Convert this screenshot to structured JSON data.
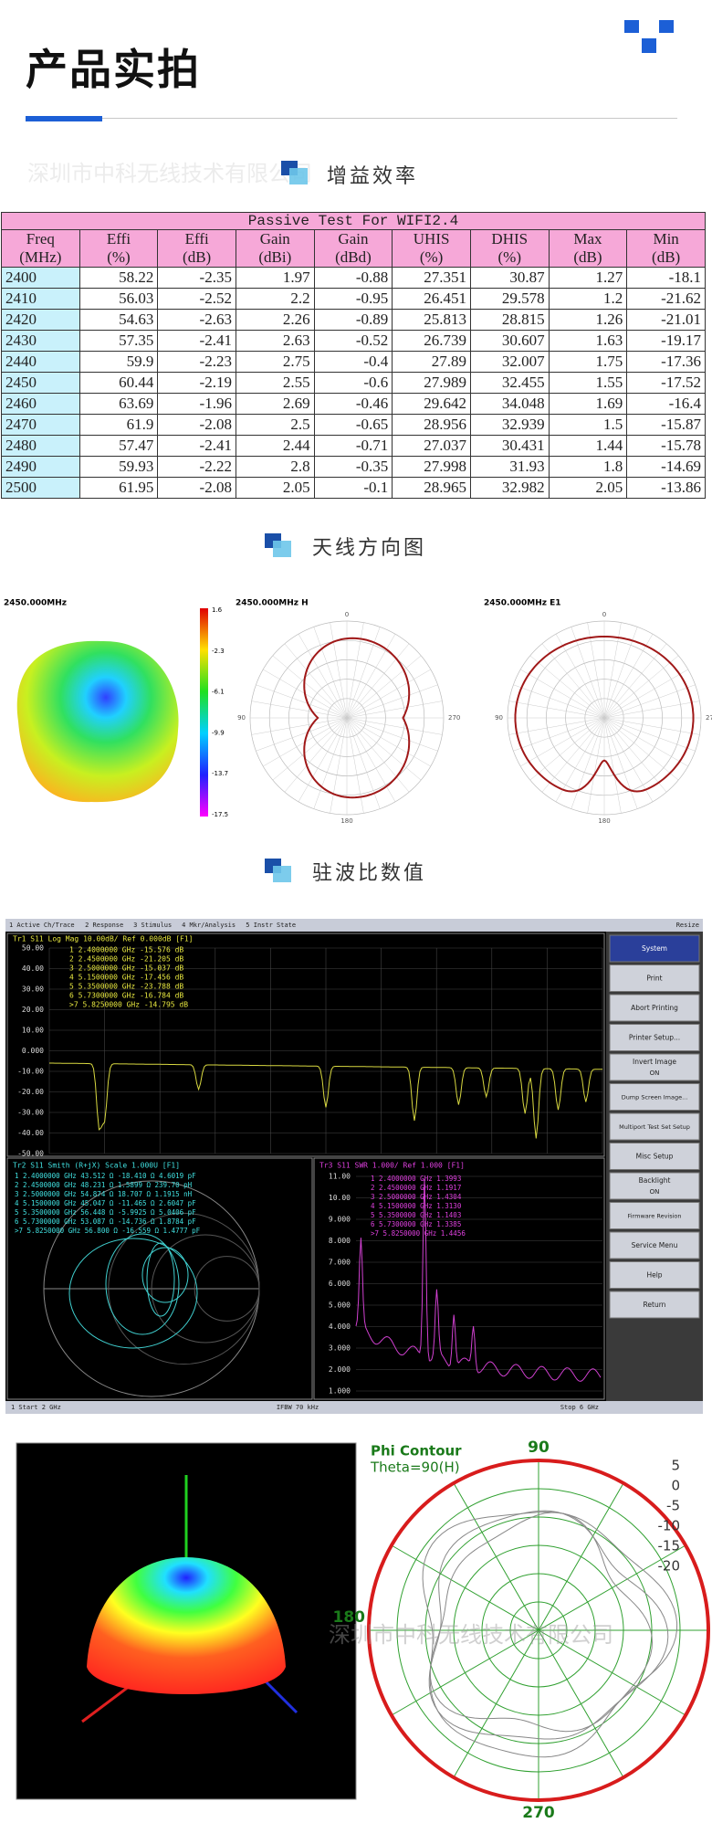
{
  "header": {
    "title": "产品实拍"
  },
  "watermark": "深圳市中科无线技术有限公司",
  "sections": [
    "增益效率",
    "天线方向图",
    "驻波比数值"
  ],
  "table": {
    "title": "Passive Test For WIFI2.4",
    "columns": [
      {
        "name": "Freq",
        "unit": "(MHz)"
      },
      {
        "name": "Effi",
        "unit": "(%)"
      },
      {
        "name": "Effi",
        "unit": "(dB)"
      },
      {
        "name": "Gain",
        "unit": "(dBi)"
      },
      {
        "name": "Gain",
        "unit": "(dBd)"
      },
      {
        "name": "UHIS",
        "unit": "(%)"
      },
      {
        "name": "DHIS",
        "unit": "(%)"
      },
      {
        "name": "Max",
        "unit": "(dB)"
      },
      {
        "name": "Min",
        "unit": "(dB)"
      }
    ],
    "rows": [
      [
        "2400",
        "58.22",
        "-2.35",
        "1.97",
        "-0.88",
        "27.351",
        "30.87",
        "1.27",
        "-18.1"
      ],
      [
        "2410",
        "56.03",
        "-2.52",
        "2.2",
        "-0.95",
        "26.451",
        "29.578",
        "1.2",
        "-21.62"
      ],
      [
        "2420",
        "54.63",
        "-2.63",
        "2.26",
        "-0.89",
        "25.813",
        "28.815",
        "1.26",
        "-21.01"
      ],
      [
        "2430",
        "57.35",
        "-2.41",
        "2.63",
        "-0.52",
        "26.739",
        "30.607",
        "1.63",
        "-19.17"
      ],
      [
        "2440",
        "59.9",
        "-2.23",
        "2.75",
        "-0.4",
        "27.89",
        "32.007",
        "1.75",
        "-17.36"
      ],
      [
        "2450",
        "60.44",
        "-2.19",
        "2.55",
        "-0.6",
        "27.989",
        "32.455",
        "1.55",
        "-17.52"
      ],
      [
        "2460",
        "63.69",
        "-1.96",
        "2.69",
        "-0.46",
        "29.642",
        "34.048",
        "1.69",
        "-16.4"
      ],
      [
        "2470",
        "61.9",
        "-2.08",
        "2.5",
        "-0.65",
        "28.956",
        "32.939",
        "1.5",
        "-15.87"
      ],
      [
        "2480",
        "57.47",
        "-2.41",
        "2.44",
        "-0.71",
        "27.037",
        "30.431",
        "1.44",
        "-15.78"
      ],
      [
        "2490",
        "59.93",
        "-2.22",
        "2.8",
        "-0.35",
        "27.998",
        "31.93",
        "1.8",
        "-14.69"
      ],
      [
        "2500",
        "61.95",
        "-2.08",
        "2.05",
        "-0.1",
        "28.965",
        "32.982",
        "2.05",
        "-13.86"
      ]
    ]
  },
  "pattern_plots": {
    "labels": [
      "2450.000MHz",
      "2450.000MHz  H",
      "2450.000MHz  E1"
    ],
    "colorbar": [
      "1.6",
      "-2.3",
      "-6.1",
      "-9.9",
      "-13.7",
      "-17.5"
    ],
    "angles": [
      "0",
      "270",
      "180",
      "90"
    ]
  },
  "vna": {
    "menu": [
      "1 Active Ch/Trace",
      "2 Response",
      "3 Stimulus",
      "4 Mkr/Analysis",
      "5 Instr State"
    ],
    "resize": "Resize",
    "tr1": {
      "label": "Tr1 S11 Log Mag 10.00dB/ Ref 0.000dB [F1]",
      "yticks": [
        "50.00",
        "40.00",
        "30.00",
        "20.00",
        "10.00",
        "0.000",
        "-10.00",
        "-20.00",
        "-30.00",
        "-40.00",
        "-50.00"
      ],
      "markers": [
        "1  2.4000000 GHz -15.576 dB",
        "2  2.4500000 GHz -21.205 dB",
        "3  2.5000000 GHz -15.037 dB",
        "4  5.1500000 GHz -17.456 dB",
        "5  5.3500000 GHz -23.788 dB",
        "6  5.7300000 GHz -16.784 dB",
        ">7 5.8250000 GHz -14.795 dB"
      ]
    },
    "tr2": {
      "label": "Tr2 S11 Smith (R+jX) Scale 1.000U [F1]",
      "markers": [
        "1  2.4000000 GHz  43.512 Ω -18.410 Ω  4.6019 pF",
        "2  2.4500000 GHz  48.231 Ω  1.5899 Ω  239.70 pH",
        "3  2.5000000 GHz  54.874 Ω  18.707 Ω  1.1915 nH",
        "4  5.1500000 GHz  45.047 Ω -11.465 Ω  2.6047 pF",
        "5  5.3500000 GHz  56.448 Ω -5.9925 Ω  5.0406 pF",
        "6  5.7300000 GHz  53.087 Ω -14.736 Ω  1.8784 pF",
        ">7 5.8250000 GHz  56.800 Ω -16.559 Ω  1.4777 pF"
      ]
    },
    "tr3": {
      "label": "Tr3 S11 SWR 1.000/ Ref 1.000 [F1]",
      "yticks": [
        "11.00",
        "10.00",
        "9.000",
        "8.000",
        "7.000",
        "6.000",
        "5.000",
        "4.000",
        "3.000",
        "2.000",
        "1.000"
      ],
      "markers": [
        "1  2.4000000 GHz  1.3993",
        "2  2.4500000 GHz  1.1917",
        "3  2.5000000 GHz  1.4304",
        "4  5.1500000 GHz  1.3130",
        "5  5.3500000 GHz  1.1403",
        "6  5.7300000 GHz  1.3385",
        ">7 5.8250000 GHz  1.4456"
      ]
    },
    "softkeys": [
      {
        "label": "System"
      },
      {
        "label": "Print"
      },
      {
        "label": "Abort Printing"
      },
      {
        "label": "Printer Setup..."
      },
      {
        "label": "Invert Image",
        "state": "ON"
      },
      {
        "label": "Dump Screen Image..."
      },
      {
        "label": "Multiport Test Set Setup"
      },
      {
        "label": "Misc Setup"
      },
      {
        "label": "Backlight",
        "state": "ON"
      },
      {
        "label": "Firmware Revision"
      },
      {
        "label": "Service Menu"
      },
      {
        "label": "Help"
      },
      {
        "label": "Return"
      }
    ],
    "status": [
      "1  Start 2 GHz",
      "IFBW 70 kHz",
      "Stop 6 GHz"
    ]
  },
  "phi_contour": {
    "title": "Phi Contour",
    "subtitle": "Theta=90(H)",
    "angles": [
      "90",
      "180",
      "270"
    ],
    "scale": [
      "5",
      "0",
      "-5",
      "-10",
      "-15",
      "-20"
    ]
  }
}
